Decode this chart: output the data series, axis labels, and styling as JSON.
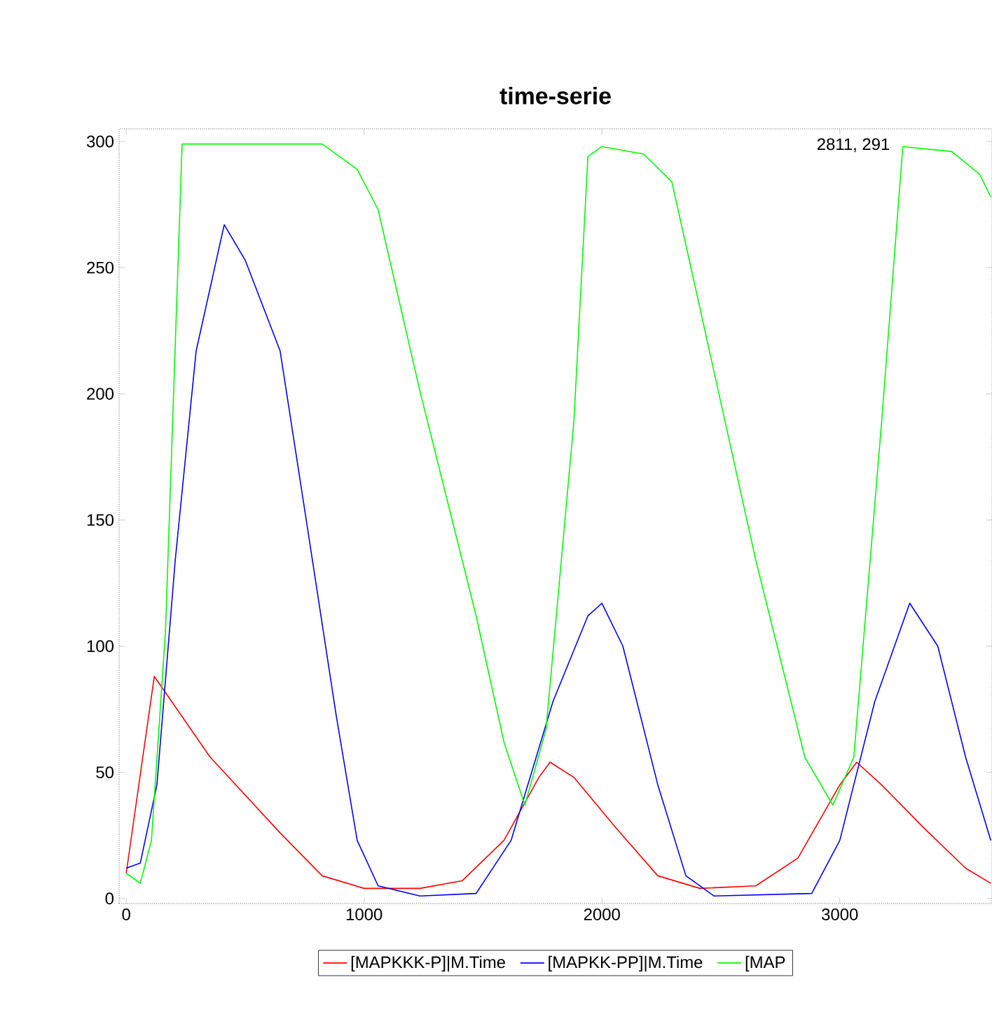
{
  "chart_data": {
    "type": "line",
    "title": "time-serie",
    "xlim": [
      -30,
      3640
    ],
    "ylim": [
      -2,
      305
    ],
    "xticks": [
      0,
      1000,
      2000,
      3000
    ],
    "yticks": [
      0,
      50,
      100,
      150,
      200,
      250,
      300
    ],
    "grid": false,
    "legend": "bottom",
    "annotations": [
      "2811, 291"
    ],
    "series": [
      {
        "name": "[MAPKKK-P]|M.Time",
        "color": "#ff0000",
        "x": [
          0,
          118,
          353,
          647,
          824,
          1000,
          1235,
          1412,
          1588,
          1735,
          1782,
          1882,
          2059,
          2235,
          2412,
          2647,
          2824,
          3000,
          3071,
          3176,
          3353,
          3529,
          3635
        ],
        "values": [
          10,
          88,
          56,
          26,
          9,
          4,
          4,
          7,
          23,
          48,
          54,
          48,
          28,
          9,
          4,
          5,
          16,
          45,
          54,
          45,
          28,
          12,
          6
        ]
      },
      {
        "name": "[MAPKK-PP]|M.Time",
        "color": "#0000ff",
        "x": [
          0,
          59,
          129,
          206,
          294,
          412,
          500,
          647,
          765,
          882,
          971,
          1059,
          1235,
          1471,
          1618,
          1794,
          1941,
          2000,
          2088,
          2235,
          2353,
          2471,
          2882,
          3000,
          3147,
          3294,
          3412,
          3529,
          3635
        ],
        "values": [
          12,
          14,
          45,
          134,
          217,
          267,
          253,
          217,
          145,
          73,
          23,
          5,
          1,
          2,
          23,
          78,
          112,
          117,
          100,
          45,
          9,
          1,
          2,
          23,
          78,
          117,
          100,
          56,
          23
        ]
      },
      {
        "name": "[MAP",
        "color": "#00ff00",
        "x": [
          0,
          59,
          106,
          165,
          235,
          824,
          971,
          1059,
          1235,
          1471,
          1588,
          1676,
          1765,
          1882,
          1941,
          2000,
          2176,
          2294,
          2412,
          2647,
          2853,
          2971,
          3059,
          3176,
          3265,
          3471,
          3588,
          3635
        ],
        "values": [
          10,
          6,
          23,
          106,
          299,
          299,
          289,
          273,
          201,
          112,
          62,
          37,
          67,
          189,
          294,
          298,
          295,
          284,
          234,
          134,
          56,
          37,
          56,
          189,
          298,
          296,
          287,
          278
        ]
      }
    ]
  }
}
